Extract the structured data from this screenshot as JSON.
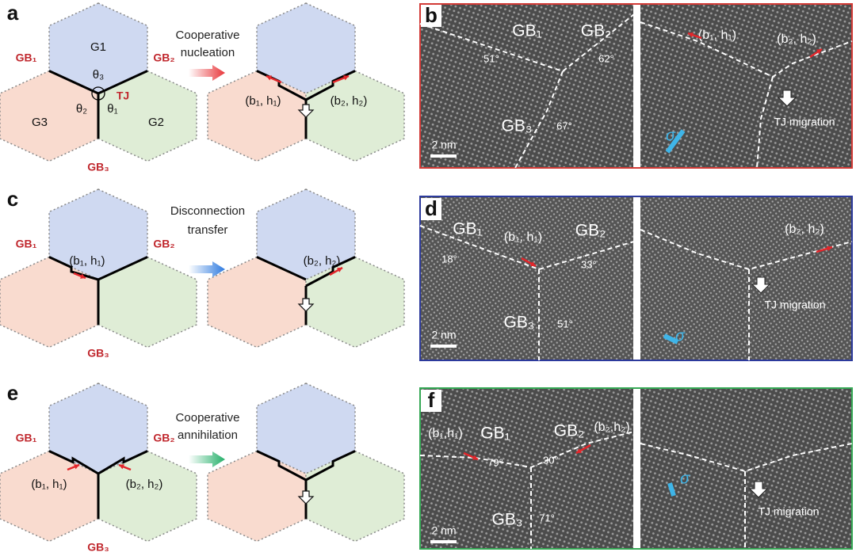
{
  "panel_a": {
    "letter": "a",
    "grains": [
      "G1",
      "G2",
      "G3"
    ],
    "angles": [
      "θ₁",
      "θ₂",
      "θ₃"
    ],
    "junction": "TJ",
    "boundaries": [
      "GB₁",
      "GB₂",
      "GB₃"
    ],
    "caption": [
      "Cooperative",
      "nucleation"
    ],
    "disconnections": [
      "(b₁, h₁)",
      "(b₂, h₂)"
    ]
  },
  "panel_b": {
    "letter": "b",
    "boundaries": [
      "GB₁",
      "GB₂",
      "GB₃"
    ],
    "angles": [
      "51°",
      "62°",
      "67°"
    ],
    "scale_bar": "2 nm",
    "disconnections": [
      "(b₁, h₁)",
      "(b₂, h₂)"
    ],
    "migration": "TJ migration",
    "stress": "σ"
  },
  "panel_c": {
    "letter": "c",
    "boundaries": [
      "GB₁",
      "GB₂",
      "GB₃"
    ],
    "caption": [
      "Disconnection",
      "transfer"
    ],
    "disconnections": [
      "(b₁, h₁)",
      "(b₂, h₂)"
    ]
  },
  "panel_d": {
    "letter": "d",
    "boundaries": [
      "GB₁",
      "GB₂",
      "GB₃"
    ],
    "angles": [
      "18°",
      "33°",
      "51°"
    ],
    "scale_bar": "2 nm",
    "disconnections": [
      "(b₁, h₁)",
      "(b₂, h₂)"
    ],
    "migration": "TJ migration",
    "stress": "σ"
  },
  "panel_e": {
    "letter": "e",
    "boundaries": [
      "GB₁",
      "GB₂",
      "GB₃"
    ],
    "caption": [
      "Cooperative",
      "annihilation"
    ],
    "disconnections": [
      "(b₁, h₁)",
      "(b₂, h₂)"
    ]
  },
  "panel_f": {
    "letter": "f",
    "boundaries": [
      "GB₁",
      "GB₂",
      "GB₃"
    ],
    "angles": [
      "79°",
      "30°",
      "71°"
    ],
    "scale_bar": "2 nm",
    "disconnections": [
      "(b₁,h₁)",
      "(b₂,h₂)"
    ],
    "migration": "TJ migration",
    "stress": "σ"
  }
}
